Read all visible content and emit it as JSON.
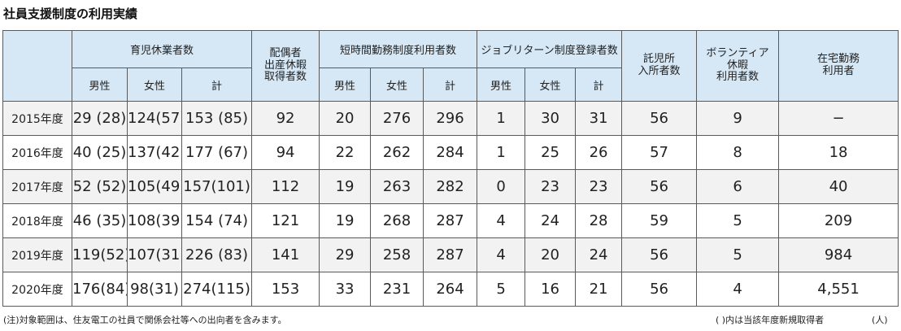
{
  "title": "社員支援制度の利用実績",
  "headers": {
    "childcare_leave": "育児休業者数",
    "spouse_leave": [
      "配偶者",
      "出産休暇",
      "取得者数"
    ],
    "short_time": "短時間勤務制度利用者数",
    "job_return": "ジョブリターン制度登録者数",
    "nursery": [
      "託児所",
      "入所者数"
    ],
    "volunteer": [
      "ボランティア",
      "休暇",
      "利用者数"
    ],
    "remote": [
      "在宅勤務",
      "利用者"
    ],
    "male": "男性",
    "female": "女性",
    "total": "計"
  },
  "rows": [
    {
      "year": "2015年度",
      "cl_male": "29 (28)",
      "cl_female": "124(57)",
      "cl_total": "153 (85)",
      "spouse": "92",
      "st_male": "20",
      "st_female": "276",
      "st_total": "296",
      "jr_male": "1",
      "jr_female": "30",
      "jr_total": "31",
      "nursery": "56",
      "volunteer": "9",
      "remote": "−"
    },
    {
      "year": "2016年度",
      "cl_male": "40 (25)",
      "cl_female": "137(42)",
      "cl_total": "177 (67)",
      "spouse": "94",
      "st_male": "22",
      "st_female": "262",
      "st_total": "284",
      "jr_male": "1",
      "jr_female": "25",
      "jr_total": "26",
      "nursery": "57",
      "volunteer": "8",
      "remote": "18"
    },
    {
      "year": "2017年度",
      "cl_male": "52 (52)",
      "cl_female": "105(49)",
      "cl_total": "157(101)",
      "spouse": "112",
      "st_male": "19",
      "st_female": "263",
      "st_total": "282",
      "jr_male": "0",
      "jr_female": "23",
      "jr_total": "23",
      "nursery": "56",
      "volunteer": "6",
      "remote": "40"
    },
    {
      "year": "2018年度",
      "cl_male": "46 (35)",
      "cl_female": "108(39)",
      "cl_total": "154 (74)",
      "spouse": "121",
      "st_male": "19",
      "st_female": "268",
      "st_total": "287",
      "jr_male": "4",
      "jr_female": "24",
      "jr_total": "28",
      "nursery": "59",
      "volunteer": "5",
      "remote": "209"
    },
    {
      "year": "2019年度",
      "cl_male": "119(52)",
      "cl_female": "107(31)",
      "cl_total": "226 (83)",
      "spouse": "141",
      "st_male": "29",
      "st_female": "258",
      "st_total": "287",
      "jr_male": "4",
      "jr_female": "20",
      "jr_total": "24",
      "nursery": "56",
      "volunteer": "5",
      "remote": "984"
    },
    {
      "year": "2020年度",
      "cl_male": "176(84)",
      "cl_female": "98(31)",
      "cl_total": "274(115)",
      "spouse": "153",
      "st_male": "33",
      "st_female": "231",
      "st_total": "264",
      "jr_male": "5",
      "jr_female": "16",
      "jr_total": "21",
      "nursery": "56",
      "volunteer": "4",
      "remote": "4,551"
    }
  ],
  "footnote": "(注)対象範囲は、住友電工の社員で関係会社等への出向者を含みます。",
  "legend": "( )内は当該年度新規取得者",
  "unit": "(人)"
}
